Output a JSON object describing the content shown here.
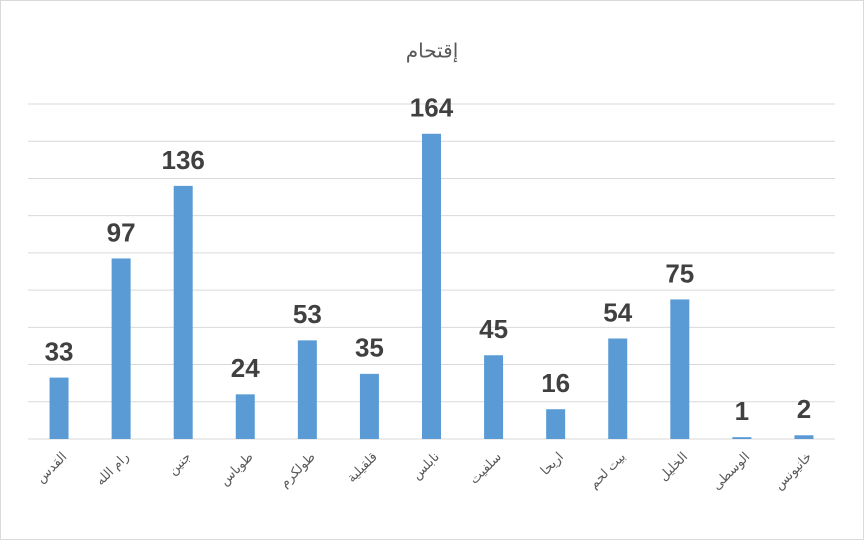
{
  "chart_data": {
    "type": "bar",
    "title": "إقتحام",
    "categories": [
      "القدس",
      "رام الله",
      "جنين",
      "طوباس",
      "طولكرم",
      "قلقيلية",
      "نابلس",
      "سلفيت",
      "اريحا",
      "بيت لحم",
      "الخليل",
      "الوسطى",
      "خانيونس"
    ],
    "values": [
      33,
      97,
      136,
      24,
      53,
      35,
      164,
      45,
      16,
      54,
      75,
      1,
      2
    ],
    "color": "#5b9bd5",
    "ylim": [
      0,
      180
    ],
    "yticks": [
      0,
      20,
      40,
      60,
      80,
      100,
      120,
      140,
      160,
      180
    ],
    "grid": true
  }
}
